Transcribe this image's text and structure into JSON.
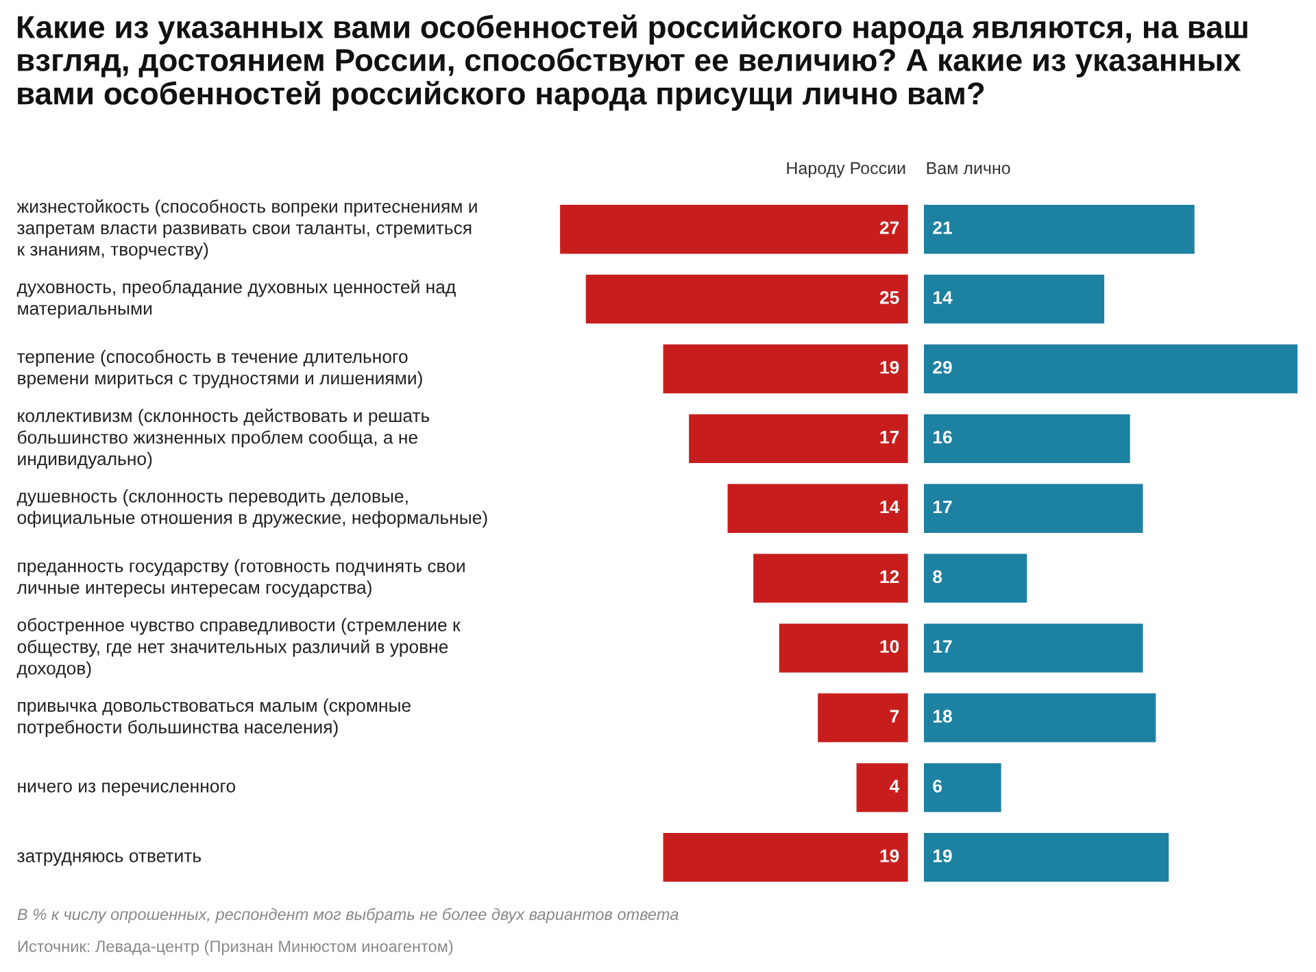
{
  "chart_data": [
    {
      "type": "bar",
      "orientation": "horizontal",
      "title": "Какие из указанных вами особенностей российского народа являются, на ваш взгляд, достоянием России, способствуют ее величию? А какие из указанных вами особенностей российского народа присущи лично вам?",
      "annotations": [
        "В % к числу опрошенных, респондент мог выбрать не более двух вариантов ответа",
        "Источник: Левада-центр (Признан Минюстом иноагентом)"
      ],
      "categories": [
        "жизнестойкость (способность вопреки притеснениям и запретам власти развивать свои таланты, стремиться к знаниям, творчеству)",
        "духовность, преобладание духовных ценностей над материальными",
        "терпение (способность в течение длительного времени мириться с трудностями и лишениями)",
        "коллективизм (склонность действовать и решать большинство жизненных проблем сообща, а не индивидуально)",
        "душевность (склонность переводить деловые, официальные отношения в дружеские, неформальные)",
        "преданность государству (готовность подчинять свои личные интересы интересам государства)",
        "обостренное чувство справедливости (стремление к обществу, где нет значительных различий в уровне доходов)",
        "привычка довольствоваться малым (скромные потребности большинства населения)",
        "ничего из перечисленного",
        "затрудняюсь ответить"
      ],
      "series": [
        {
          "name": "Народу России",
          "color": "#c71e1d",
          "values": [
            27,
            25,
            19,
            17,
            14,
            12,
            10,
            7,
            4,
            19
          ]
        }
      ],
      "data_labels": true,
      "tick_labels": "y"
    },
    {
      "type": "bar",
      "orientation": "horizontal",
      "series": [
        {
          "name": "Вам лично",
          "color": "#1d81a2",
          "values": [
            21,
            14,
            29,
            16,
            17,
            8,
            17,
            18,
            6,
            19
          ]
        }
      ],
      "data_labels": true,
      "tick_labels": false
    }
  ]
}
